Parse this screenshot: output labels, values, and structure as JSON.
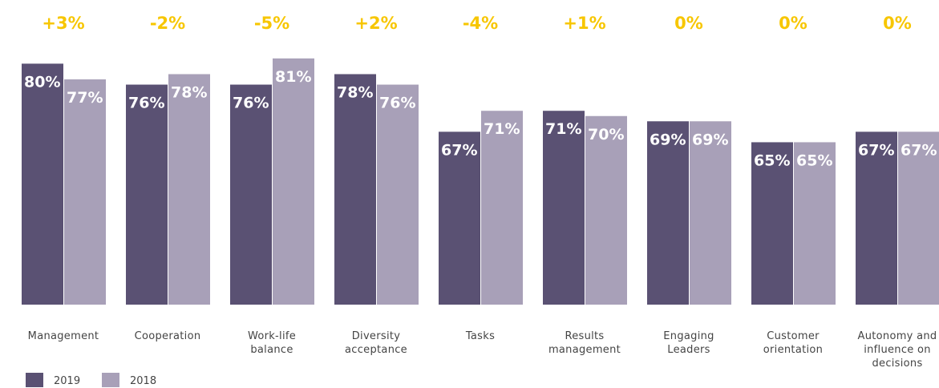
{
  "chart_data": {
    "type": "bar",
    "categories": [
      "Management",
      "Cooperation",
      "Work-life balance",
      "Diversity acceptance",
      "Tasks",
      "Results management",
      "Engaging Leaders",
      "Customer orientation",
      "Autonomy and influence on decisions"
    ],
    "annotations": [
      "+3%",
      "-2%",
      "-5%",
      "+2%",
      "-4%",
      "+1%",
      "0%",
      "0%",
      "0%"
    ],
    "annotation_color": "#f7c600",
    "series": [
      {
        "name": "2019",
        "color": "#5a5173",
        "values": [
          80,
          76,
          76,
          78,
          67,
          71,
          69,
          65,
          67
        ],
        "value_labels": [
          "80%",
          "76%",
          "76%",
          "78%",
          "67%",
          "71%",
          "69%",
          "65%",
          "67%"
        ]
      },
      {
        "name": "2018",
        "color": "#a8a0b8",
        "values": [
          77,
          78,
          81,
          76,
          71,
          70,
          69,
          65,
          67
        ],
        "value_labels": [
          "77%",
          "78%",
          "81%",
          "76%",
          "71%",
          "70%",
          "69%",
          "65%",
          "67%"
        ]
      }
    ],
    "ylim": [
      34,
      92
    ]
  }
}
